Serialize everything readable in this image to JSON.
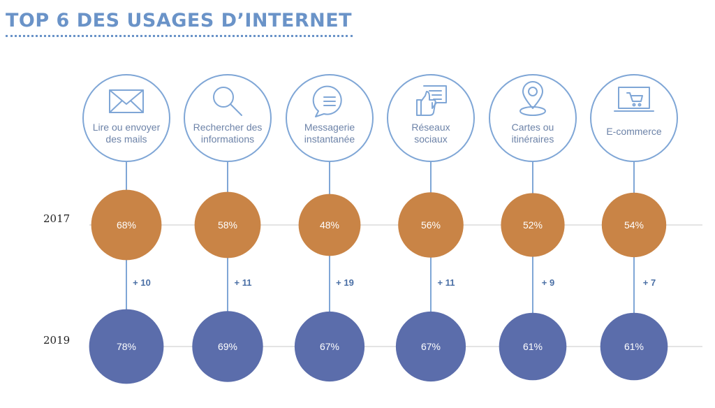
{
  "header": {
    "title": "TOP 6 DES USAGES D’INTERNET"
  },
  "colors": {
    "title": "#6a93c8",
    "outline": "#7fa6d6",
    "label_text": "#6d83a8",
    "delta_text": "#4a6fa5",
    "series_2017": "#c98446",
    "series_2019": "#5b6dab"
  },
  "chart_data": {
    "type": "bubble",
    "title": "TOP 6 DES USAGES D’INTERNET",
    "categories": [
      {
        "label": "Lire ou envoyer des mails",
        "lines": [
          "Lire ou envoyer",
          "des mails"
        ],
        "icon": "mail-icon"
      },
      {
        "label": "Rechercher des informations",
        "lines": [
          "Rechercher des",
          "informations"
        ],
        "icon": "search-icon"
      },
      {
        "label": "Messagerie instantanée",
        "lines": [
          "Messagerie",
          "instantanée"
        ],
        "icon": "chat-icon"
      },
      {
        "label": "Réseaux sociaux",
        "lines": [
          "Réseaux",
          "sociaux"
        ],
        "icon": "like-icon"
      },
      {
        "label": "Cartes ou itinéraires",
        "lines": [
          "Cartes ou",
          "itinéraires"
        ],
        "icon": "map-pin-icon"
      },
      {
        "label": "E-commerce",
        "lines": [
          "E-commerce"
        ],
        "icon": "cart-icon"
      }
    ],
    "series": [
      {
        "name": "2017",
        "values": [
          68,
          58,
          48,
          56,
          52,
          54
        ],
        "labels": [
          "68%",
          "58%",
          "48%",
          "56%",
          "52%",
          "54%"
        ],
        "color": "#c98446"
      },
      {
        "name": "2019",
        "values": [
          78,
          69,
          67,
          67,
          61,
          61
        ],
        "labels": [
          "78%",
          "69%",
          "67%",
          "67%",
          "61%",
          "61%"
        ],
        "color": "#5b6dab"
      }
    ],
    "deltas": [
      "+ 10",
      "+ 11",
      "+ 19",
      "+ 11",
      "+ 9",
      "+ 7"
    ],
    "unit": "%"
  }
}
